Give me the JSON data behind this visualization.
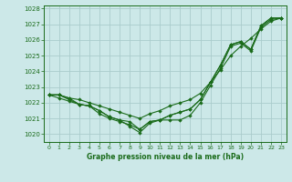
{
  "title": "Graphe pression niveau de la mer (hPa)",
  "bg_color": "#cce8e8",
  "grid_color": "#aacccc",
  "line_color": "#1a6b1a",
  "xlim": [
    -0.5,
    23.5
  ],
  "ylim": [
    1019.5,
    1028.2
  ],
  "yticks": [
    1020,
    1021,
    1022,
    1023,
    1024,
    1025,
    1026,
    1027,
    1028
  ],
  "xtick_labels": [
    "0",
    "1",
    "2",
    "3",
    "4",
    "5",
    "6",
    "7",
    "8",
    "9",
    "10",
    "11",
    "12",
    "13",
    "14",
    "15",
    "16",
    "17",
    "18",
    "19",
    "20",
    "21",
    "22",
    "23"
  ],
  "series": [
    [
      1022.5,
      1022.5,
      1022.2,
      1021.9,
      1021.8,
      1021.5,
      1021.1,
      1020.9,
      1020.5,
      1020.1,
      1020.7,
      1020.9,
      1020.9,
      1020.9,
      1021.2,
      1022.0,
      1023.1,
      1024.2,
      1025.6,
      1025.8,
      1025.3,
      1026.8,
      1027.3,
      1027.4
    ],
    [
      1022.5,
      1022.3,
      1022.1,
      1021.9,
      1021.8,
      1021.3,
      1021.0,
      1020.8,
      1020.6,
      1020.3,
      1020.8,
      1020.9,
      1021.2,
      1021.4,
      1021.6,
      1022.2,
      1023.3,
      1024.4,
      1025.7,
      1025.9,
      1025.4,
      1026.9,
      1027.4,
      1027.4
    ],
    [
      1022.5,
      1022.5,
      1022.3,
      1021.9,
      1021.8,
      1021.5,
      1021.1,
      1020.9,
      1020.8,
      1020.3,
      1020.8,
      1020.9,
      1021.2,
      1021.4,
      1021.6,
      1022.2,
      1023.3,
      1024.4,
      1025.7,
      1025.9,
      1025.4,
      1026.9,
      1027.4,
      1027.4
    ],
    [
      1022.5,
      1022.5,
      1022.3,
      1022.2,
      1022.0,
      1021.8,
      1021.6,
      1021.4,
      1021.2,
      1021.0,
      1021.3,
      1021.5,
      1021.8,
      1022.0,
      1022.2,
      1022.6,
      1023.3,
      1024.1,
      1025.0,
      1025.6,
      1026.1,
      1026.7,
      1027.2,
      1027.4
    ]
  ],
  "figsize": [
    3.2,
    2.0
  ],
  "dpi": 100
}
